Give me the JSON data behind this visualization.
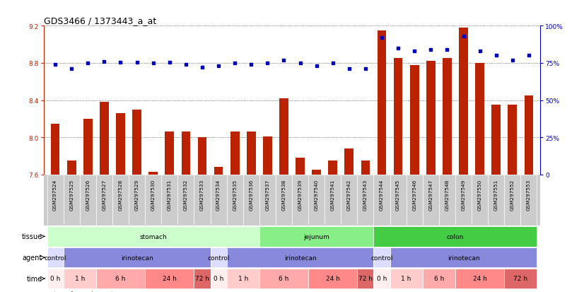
{
  "title": "GDS3466 / 1373443_a_at",
  "samples": [
    "GSM297524",
    "GSM297525",
    "GSM297526",
    "GSM297527",
    "GSM297528",
    "GSM297529",
    "GSM297530",
    "GSM297531",
    "GSM297532",
    "GSM297533",
    "GSM297534",
    "GSM297535",
    "GSM297536",
    "GSM297537",
    "GSM297538",
    "GSM297539",
    "GSM297540",
    "GSM297541",
    "GSM297542",
    "GSM297543",
    "GSM297544",
    "GSM297545",
    "GSM297546",
    "GSM297547",
    "GSM297548",
    "GSM297549",
    "GSM297550",
    "GSM297551",
    "GSM297552",
    "GSM297553"
  ],
  "bar_values": [
    8.15,
    7.75,
    8.2,
    8.38,
    8.26,
    8.3,
    7.63,
    8.06,
    8.06,
    8.0,
    7.68,
    8.06,
    8.06,
    8.01,
    8.42,
    7.78,
    7.65,
    7.75,
    7.88,
    7.75,
    9.15,
    8.85,
    8.78,
    8.82,
    8.85,
    9.18,
    8.8,
    8.35,
    8.35,
    8.45
  ],
  "pct_values": [
    74,
    71,
    75,
    76,
    75.5,
    75.5,
    75,
    75.5,
    74,
    72,
    73,
    75,
    74,
    75,
    77,
    75,
    73,
    75,
    71,
    71,
    92,
    85,
    83,
    84,
    84,
    93,
    83,
    80,
    77,
    80
  ],
  "ylim_left": [
    7.6,
    9.2
  ],
  "yticks_left": [
    7.6,
    8.0,
    8.4,
    8.8,
    9.2
  ],
  "ylim_right": [
    0,
    100
  ],
  "yticks_right": [
    0,
    25,
    50,
    75,
    100
  ],
  "bar_color": "#BB2200",
  "dot_color": "#0000BB",
  "tissue_groups": [
    {
      "label": "stomach",
      "start": 0,
      "end": 13,
      "color": "#ccffcc"
    },
    {
      "label": "jejunum",
      "start": 13,
      "end": 20,
      "color": "#88ee88"
    },
    {
      "label": "colon",
      "start": 20,
      "end": 30,
      "color": "#44cc44"
    }
  ],
  "agent_groups": [
    {
      "label": "control",
      "start": 0,
      "end": 1,
      "color": "#ddddff"
    },
    {
      "label": "irinotecan",
      "start": 1,
      "end": 10,
      "color": "#8888dd"
    },
    {
      "label": "control",
      "start": 10,
      "end": 11,
      "color": "#ddddff"
    },
    {
      "label": "irinotecan",
      "start": 11,
      "end": 20,
      "color": "#8888dd"
    },
    {
      "label": "control",
      "start": 20,
      "end": 21,
      "color": "#ddddff"
    },
    {
      "label": "irinotecan",
      "start": 21,
      "end": 30,
      "color": "#8888dd"
    }
  ],
  "time_groups": [
    {
      "label": "0 h",
      "start": 0,
      "end": 1,
      "color": "#ffeeee"
    },
    {
      "label": "1 h",
      "start": 1,
      "end": 3,
      "color": "#ffcccc"
    },
    {
      "label": "6 h",
      "start": 3,
      "end": 6,
      "color": "#ffaaaa"
    },
    {
      "label": "24 h",
      "start": 6,
      "end": 9,
      "color": "#ff8888"
    },
    {
      "label": "72 h",
      "start": 9,
      "end": 10,
      "color": "#dd6666"
    },
    {
      "label": "0 h",
      "start": 10,
      "end": 11,
      "color": "#ffeeee"
    },
    {
      "label": "1 h",
      "start": 11,
      "end": 13,
      "color": "#ffcccc"
    },
    {
      "label": "6 h",
      "start": 13,
      "end": 16,
      "color": "#ffaaaa"
    },
    {
      "label": "24 h",
      "start": 16,
      "end": 19,
      "color": "#ff8888"
    },
    {
      "label": "72 h",
      "start": 19,
      "end": 20,
      "color": "#dd6666"
    },
    {
      "label": "0 h",
      "start": 20,
      "end": 21,
      "color": "#ffeeee"
    },
    {
      "label": "1 h",
      "start": 21,
      "end": 23,
      "color": "#ffcccc"
    },
    {
      "label": "6 h",
      "start": 23,
      "end": 25,
      "color": "#ffaaaa"
    },
    {
      "label": "24 h",
      "start": 25,
      "end": 28,
      "color": "#ff8888"
    },
    {
      "label": "72 h",
      "start": 28,
      "end": 30,
      "color": "#dd6666"
    }
  ],
  "label_fontsize": 6.5,
  "tick_fontsize": 6,
  "row_label_fontsize": 7,
  "dotted_line_color": "#555555",
  "xtick_bg": "#cccccc"
}
